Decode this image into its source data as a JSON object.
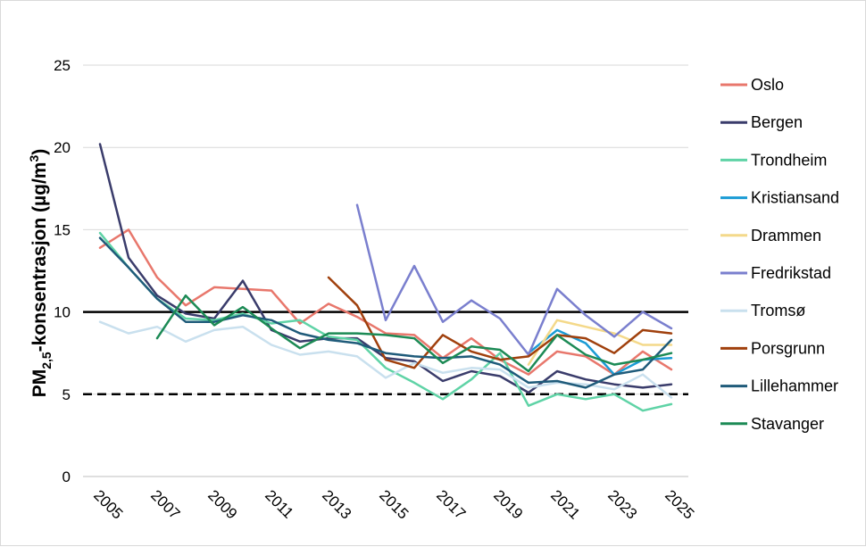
{
  "chart_data": {
    "type": "line",
    "ylabel": {
      "prefix": "PM",
      "subscript": "2,5",
      "suffix": "-konsentrasjon (µg/m",
      "superscript": "3",
      "close": ")"
    },
    "xlabel": "",
    "title": "",
    "ylim": [
      0,
      25
    ],
    "yticks": [
      "0",
      "5",
      "10",
      "15",
      "20",
      "25"
    ],
    "xlim": [
      2005,
      2025
    ],
    "xticks": [
      "2005",
      "2007",
      "2009",
      "2011",
      "2013",
      "2015",
      "2017",
      "2019",
      "2021",
      "2023",
      "2025"
    ],
    "grid": "horizontal",
    "legend_position": "right",
    "reference_lines": [
      {
        "value": 10,
        "style": "solid",
        "color": "#000000"
      },
      {
        "value": 5,
        "style": "dashed",
        "color": "#000000"
      }
    ],
    "series": [
      {
        "name": "Oslo",
        "color": "#E8776C",
        "start": 2005,
        "values": [
          13.9,
          15.0,
          12.1,
          10.4,
          11.5,
          11.4,
          11.3,
          9.3,
          10.5,
          9.7,
          8.7,
          8.6,
          7.2,
          8.4,
          7.1,
          6.2,
          7.6,
          7.3,
          6.2,
          7.6,
          6.5
        ]
      },
      {
        "name": "Bergen",
        "color": "#3A3C6B",
        "start": 2005,
        "values": [
          20.2,
          13.3,
          11.0,
          9.9,
          9.6,
          11.9,
          8.9,
          8.2,
          8.4,
          8.4,
          7.2,
          7.0,
          5.8,
          6.4,
          6.1,
          5.1,
          6.4,
          5.9,
          5.6,
          5.4,
          5.6
        ]
      },
      {
        "name": "Trondheim",
        "color": "#5FD3A6",
        "start": 2005,
        "values": [
          14.8,
          12.7,
          10.8,
          9.6,
          9.5,
          9.9,
          9.3,
          9.5,
          8.5,
          8.3,
          6.6,
          5.7,
          4.7,
          5.9,
          7.5,
          4.3,
          5.0,
          4.7,
          5.0,
          4.0,
          4.4
        ]
      },
      {
        "name": "Kristiansand",
        "color": "#1A9BD5",
        "start": 2020,
        "values": [
          7.5,
          8.9,
          8.1,
          6.2,
          7.1,
          7.2
        ]
      },
      {
        "name": "Drammen",
        "color": "#F4D98A",
        "start": 2020,
        "values": [
          6.8,
          9.5,
          9.1,
          8.7,
          8.0,
          8.0
        ]
      },
      {
        "name": "Fredrikstad",
        "color": "#7A7FCE",
        "start": 2014,
        "values": [
          16.5,
          9.5,
          12.8,
          9.4,
          10.7,
          9.6,
          7.4,
          11.4,
          9.8,
          8.5,
          10.0,
          9.0
        ]
      },
      {
        "name": "Tromsø",
        "color": "#C9E0EE",
        "start": 2005,
        "values": [
          9.4,
          8.7,
          9.1,
          8.2,
          8.9,
          9.1,
          8.0,
          7.4,
          7.6,
          7.3,
          6.0,
          6.9,
          6.3,
          6.6,
          6.5,
          5.4,
          5.7,
          5.6,
          5.3,
          6.2,
          4.8
        ]
      },
      {
        "name": "Porsgrunn",
        "color": "#A0400D",
        "start": 2013,
        "values": [
          12.1,
          10.4,
          7.1,
          6.6,
          8.6,
          7.6,
          7.1,
          7.3,
          8.6,
          8.4,
          7.5,
          8.9,
          8.7
        ]
      },
      {
        "name": "Lillehammer",
        "color": "#1F5B7A",
        "start": 2005,
        "values": [
          14.5,
          12.7,
          10.8,
          9.4,
          9.4,
          9.8,
          9.5,
          8.7,
          8.3,
          8.1,
          7.5,
          7.3,
          7.2,
          7.3,
          6.8,
          5.7,
          5.8,
          5.4,
          6.2,
          6.5,
          8.3
        ]
      },
      {
        "name": "Stavanger",
        "color": "#1C8A55",
        "start": 2005,
        "values": [
          null,
          null,
          8.4,
          11.0,
          9.2,
          10.3,
          9.0,
          7.8,
          8.7,
          8.7,
          8.6,
          8.4,
          6.9,
          7.9,
          7.7,
          6.4,
          8.6,
          7.4,
          6.8,
          7.1,
          7.5
        ]
      }
    ]
  }
}
